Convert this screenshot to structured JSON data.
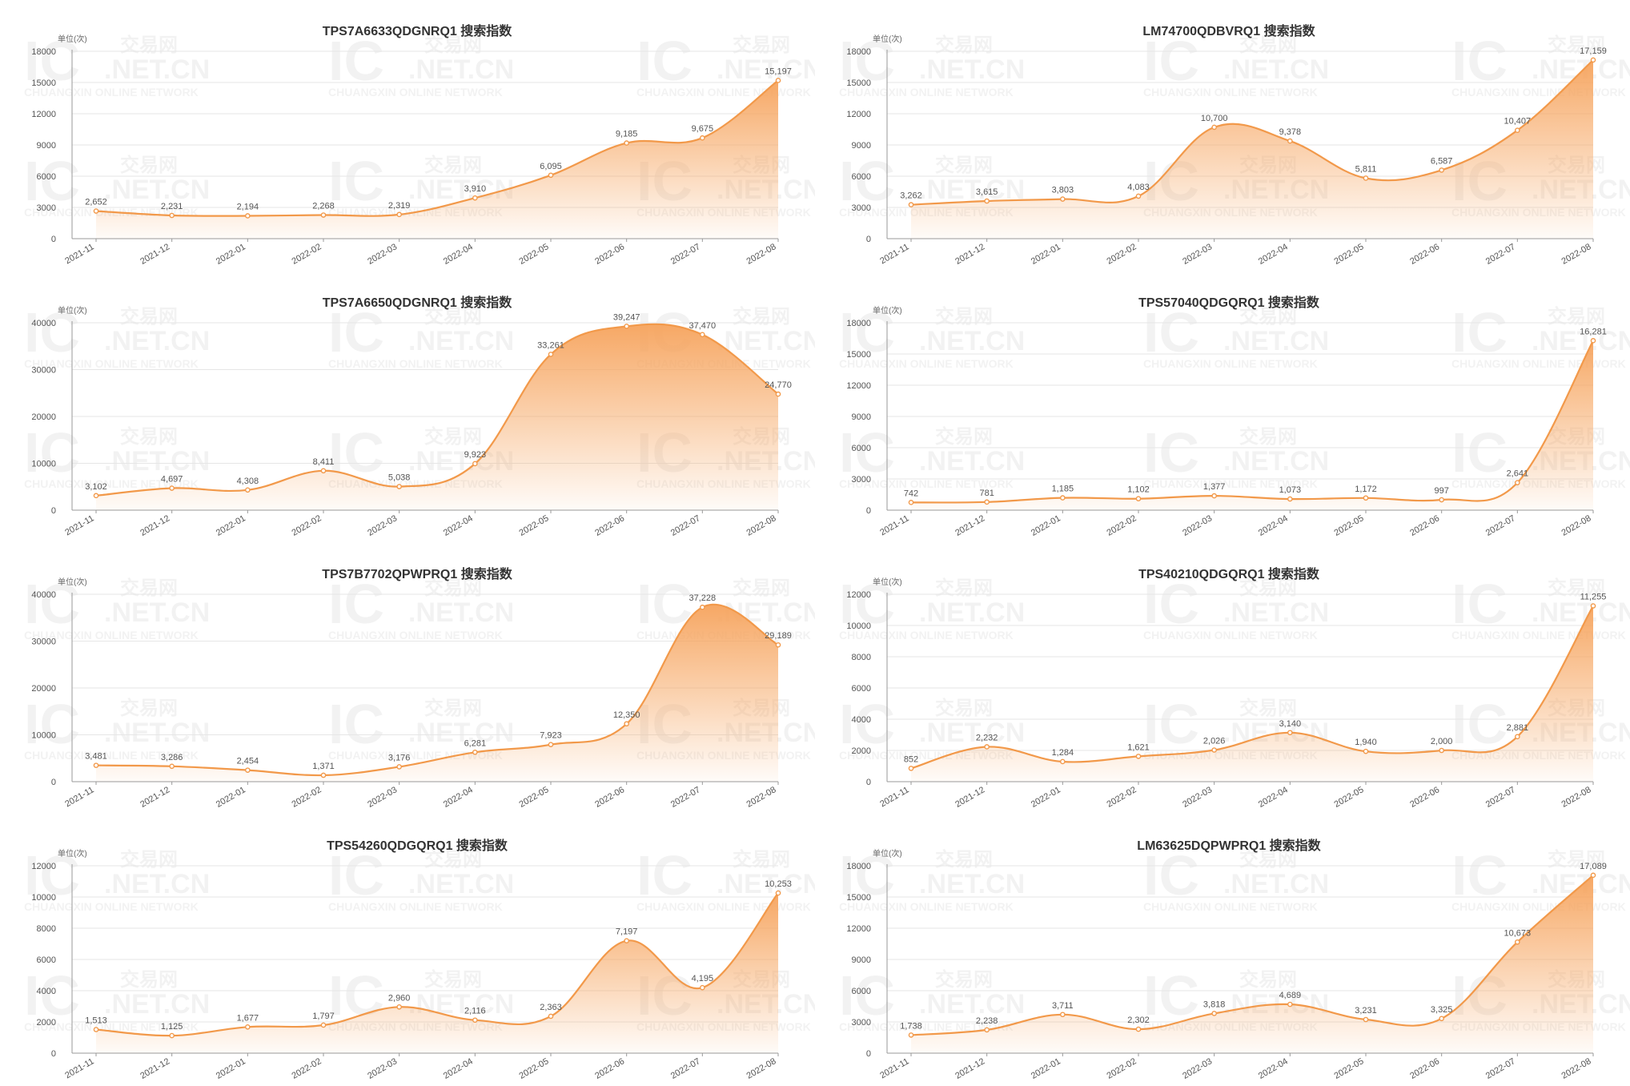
{
  "watermark": {
    "big": "IC",
    "cn": "交易网",
    "domain": ".NET.CN",
    "sub": "CHUANGXIN ONLINE NETWORK"
  },
  "colors": {
    "line": "#f2994a",
    "fill_top": "#f6a35c",
    "grid": "#e6e6e6",
    "axis": "#999999"
  },
  "chart_data": [
    {
      "type": "area",
      "title": "TPS7A6633QDGNRQ1 搜索指数",
      "unit_label": "单位(次)",
      "categories": [
        "2021-11",
        "2021-12",
        "2022-01",
        "2022-02",
        "2022-03",
        "2022-04",
        "2022-05",
        "2022-06",
        "2022-07",
        "2022-08"
      ],
      "series": [
        {
          "values": [
            2652,
            2231,
            2194,
            2268,
            2319,
            3910,
            6095,
            9185,
            9675,
            15197
          ]
        }
      ],
      "value_labels": [
        "2,652",
        "2,231",
        "2,194",
        "2,268",
        "2,319",
        "3,910",
        "6,095",
        "9,185",
        "9,675",
        "15,197"
      ],
      "ylim": [
        0,
        18000
      ],
      "yticks": [
        "0",
        "3000",
        "6000",
        "9000",
        "12000",
        "15000",
        "18000"
      ],
      "grid": true
    },
    {
      "type": "area",
      "title": "LM74700QDBVRQ1 搜索指数",
      "unit_label": "单位(次)",
      "categories": [
        "2021-11",
        "2021-12",
        "2022-01",
        "2022-02",
        "2022-03",
        "2022-04",
        "2022-05",
        "2022-06",
        "2022-07",
        "2022-08"
      ],
      "series": [
        {
          "values": [
            3262,
            3615,
            3803,
            4083,
            10700,
            9378,
            5811,
            6587,
            10407,
            17159
          ]
        }
      ],
      "value_labels": [
        "3,262",
        "3,615",
        "3,803",
        "4,083",
        "10,700",
        "9,378",
        "5,811",
        "6,587",
        "10,407",
        "17,159"
      ],
      "ylim": [
        0,
        18000
      ],
      "yticks": [
        "0",
        "3000",
        "6000",
        "9000",
        "12000",
        "15000",
        "18000"
      ],
      "grid": true
    },
    {
      "type": "area",
      "title": "TPS7A6650QDGNRQ1 搜索指数",
      "unit_label": "单位(次)",
      "categories": [
        "2021-11",
        "2021-12",
        "2022-01",
        "2022-02",
        "2022-03",
        "2022-04",
        "2022-05",
        "2022-06",
        "2022-07",
        "2022-08"
      ],
      "series": [
        {
          "values": [
            3102,
            4697,
            4308,
            8411,
            5038,
            9923,
            33261,
            39247,
            37470,
            24770
          ]
        }
      ],
      "value_labels": [
        "3,102",
        "4,697",
        "4,308",
        "8,411",
        "5,038",
        "9,923",
        "33,261",
        "39,247",
        "37,470",
        "24,770"
      ],
      "ylim": [
        0,
        40000
      ],
      "yticks": [
        "0",
        "10000",
        "20000",
        "30000",
        "40000"
      ],
      "grid": true
    },
    {
      "type": "area",
      "title": "TPS57040QDGQRQ1 搜索指数",
      "unit_label": "单位(次)",
      "categories": [
        "2021-11",
        "2021-12",
        "2022-01",
        "2022-02",
        "2022-03",
        "2022-04",
        "2022-05",
        "2022-06",
        "2022-07",
        "2022-08"
      ],
      "series": [
        {
          "values": [
            742,
            781,
            1185,
            1102,
            1377,
            1073,
            1172,
            997,
            2641,
            16281
          ]
        }
      ],
      "value_labels": [
        "742",
        "781",
        "1,185",
        "1,102",
        "1,377",
        "1,073",
        "1,172",
        "997",
        "2,641",
        "16,281"
      ],
      "ylim": [
        0,
        18000
      ],
      "yticks": [
        "0",
        "3000",
        "6000",
        "9000",
        "12000",
        "15000",
        "18000"
      ],
      "grid": true
    },
    {
      "type": "area",
      "title": "TPS7B7702QPWPRQ1 搜索指数",
      "unit_label": "单位(次)",
      "categories": [
        "2021-11",
        "2021-12",
        "2022-01",
        "2022-02",
        "2022-03",
        "2022-04",
        "2022-05",
        "2022-06",
        "2022-07",
        "2022-08"
      ],
      "series": [
        {
          "values": [
            3481,
            3286,
            2454,
            1371,
            3176,
            6281,
            7923,
            12350,
            37228,
            29189
          ]
        }
      ],
      "value_labels": [
        "3,481",
        "3,286",
        "2,454",
        "1,371",
        "3,176",
        "6,281",
        "7,923",
        "12,350",
        "37,228",
        "29,189"
      ],
      "ylim": [
        0,
        40000
      ],
      "yticks": [
        "0",
        "10000",
        "20000",
        "30000",
        "40000"
      ],
      "grid": true
    },
    {
      "type": "area",
      "title": "TPS40210QDGQRQ1 搜索指数",
      "unit_label": "单位(次)",
      "categories": [
        "2021-11",
        "2021-12",
        "2022-01",
        "2022-02",
        "2022-03",
        "2022-04",
        "2022-05",
        "2022-06",
        "2022-07",
        "2022-08"
      ],
      "series": [
        {
          "values": [
            852,
            2232,
            1284,
            1621,
            2026,
            3140,
            1940,
            2000,
            2881,
            11255
          ]
        }
      ],
      "value_labels": [
        "852",
        "2,232",
        "1,284",
        "1,621",
        "2,026",
        "3,140",
        "1,940",
        "2,000",
        "2,881",
        "11,255"
      ],
      "ylim": [
        0,
        12000
      ],
      "yticks": [
        "0",
        "2000",
        "4000",
        "6000",
        "8000",
        "10000",
        "12000"
      ],
      "grid": true
    },
    {
      "type": "area",
      "title": "TPS54260QDGQRQ1 搜索指数",
      "unit_label": "单位(次)",
      "categories": [
        "2021-11",
        "2021-12",
        "2022-01",
        "2022-02",
        "2022-03",
        "2022-04",
        "2022-05",
        "2022-06",
        "2022-07",
        "2022-08"
      ],
      "series": [
        {
          "values": [
            1513,
            1125,
            1677,
            1797,
            2960,
            2116,
            2363,
            7197,
            4195,
            10253
          ]
        }
      ],
      "value_labels": [
        "1,513",
        "1,125",
        "1,677",
        "1,797",
        "2,960",
        "2,116",
        "2,363",
        "7,197",
        "4,195",
        "10,253"
      ],
      "ylim": [
        0,
        12000
      ],
      "yticks": [
        "0",
        "2000",
        "4000",
        "6000",
        "8000",
        "10000",
        "12000"
      ],
      "grid": true
    },
    {
      "type": "area",
      "title": "LM63625DQPWPRQ1 搜索指数",
      "unit_label": "单位(次)",
      "categories": [
        "2021-11",
        "2021-12",
        "2022-01",
        "2022-02",
        "2022-03",
        "2022-04",
        "2022-05",
        "2022-06",
        "2022-07",
        "2022-08"
      ],
      "series": [
        {
          "values": [
            1738,
            2238,
            3711,
            2302,
            3818,
            4689,
            3231,
            3325,
            10673,
            17089
          ]
        }
      ],
      "value_labels": [
        "1,738",
        "2,238",
        "3,711",
        "2,302",
        "3,818",
        "4,689",
        "3,231",
        "3,325",
        "10,673",
        "17,089"
      ],
      "ylim": [
        0,
        18000
      ],
      "yticks": [
        "0",
        "3000",
        "6000",
        "9000",
        "12000",
        "15000",
        "18000"
      ],
      "grid": true
    }
  ]
}
